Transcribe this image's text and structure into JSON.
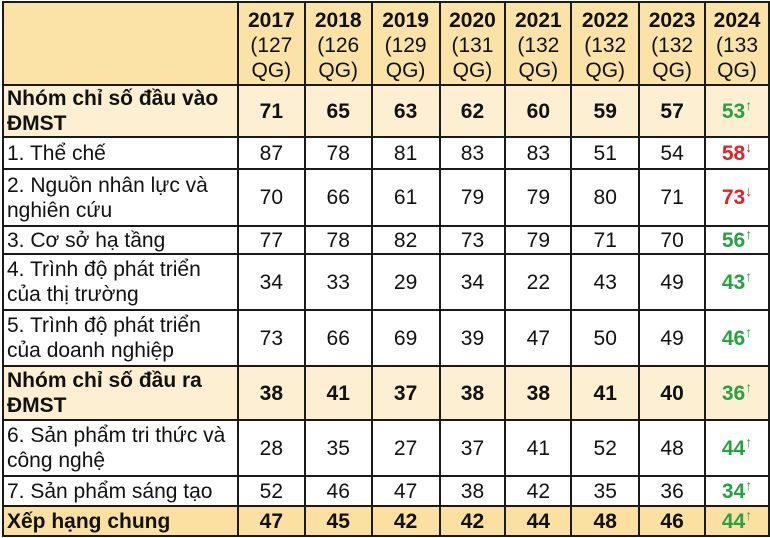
{
  "table": {
    "columns": [
      {
        "year": "2017",
        "count": "(127",
        "unit": "QG)"
      },
      {
        "year": "2018",
        "count": "(126",
        "unit": "QG)"
      },
      {
        "year": "2019",
        "count": "(129",
        "unit": "QG)"
      },
      {
        "year": "2020",
        "count": "(131",
        "unit": "QG)"
      },
      {
        "year": "2021",
        "count": "(132",
        "unit": "QG)"
      },
      {
        "year": "2022",
        "count": "(132",
        "unit": "QG)"
      },
      {
        "year": "2023",
        "count": "(132",
        "unit": "QG)"
      },
      {
        "year": "2024",
        "count": "(133",
        "unit": "QG)"
      }
    ],
    "rows": [
      {
        "label": "Nhóm chỉ số đầu vào ĐMST",
        "type": "group",
        "values": [
          "71",
          "65",
          "63",
          "62",
          "60",
          "59",
          "57",
          "53"
        ],
        "trend": "up",
        "trend_symbol": "↑"
      },
      {
        "label": "1. Thể chế",
        "type": "item",
        "values": [
          "87",
          "78",
          "81",
          "83",
          "83",
          "51",
          "54",
          "58"
        ],
        "trend": "down",
        "trend_symbol": "↓"
      },
      {
        "label": "2. Nguồn nhân lực và nghiên cứu",
        "type": "item",
        "values": [
          "70",
          "66",
          "61",
          "79",
          "79",
          "80",
          "71",
          "73"
        ],
        "trend": "down",
        "trend_symbol": "↓"
      },
      {
        "label": "3. Cơ sở hạ tầng",
        "type": "item",
        "values": [
          "77",
          "78",
          "82",
          "73",
          "79",
          "71",
          "70",
          "56"
        ],
        "trend": "up",
        "trend_symbol": "↑"
      },
      {
        "label": "4. Trình độ phát triển của thị trường",
        "type": "item",
        "values": [
          "34",
          "33",
          "29",
          "34",
          "22",
          "43",
          "49",
          "43"
        ],
        "trend": "up",
        "trend_symbol": "↑"
      },
      {
        "label": "5. Trình độ phát triển của doanh nghiệp",
        "type": "item",
        "values": [
          "73",
          "66",
          "69",
          "39",
          "47",
          "50",
          "49",
          "46"
        ],
        "trend": "up",
        "trend_symbol": "↑"
      },
      {
        "label": "Nhóm chỉ số đầu ra ĐMST",
        "type": "group",
        "values": [
          "38",
          "41",
          "37",
          "38",
          "38",
          "41",
          "40",
          "36"
        ],
        "trend": "up",
        "trend_symbol": "↑"
      },
      {
        "label": "6. Sản phẩm tri thức và công nghệ",
        "type": "item",
        "values": [
          "28",
          "35",
          "27",
          "37",
          "41",
          "52",
          "48",
          "44"
        ],
        "trend": "up",
        "trend_symbol": "↑"
      },
      {
        "label": "7. Sản phẩm sáng tạo",
        "type": "item",
        "values": [
          "52",
          "46",
          "47",
          "38",
          "42",
          "35",
          "36",
          "34"
        ],
        "trend": "up",
        "trend_symbol": "↑"
      },
      {
        "label": "Xếp hạng chung",
        "type": "total",
        "values": [
          "47",
          "45",
          "42",
          "42",
          "44",
          "48",
          "46",
          "44"
        ],
        "trend": "up",
        "trend_symbol": "↑"
      }
    ],
    "colors": {
      "header": "#fbe2a6",
      "group": "#fdf0d2",
      "total": "#fbe0a2",
      "up": "#27a243",
      "down": "#e4202a"
    }
  }
}
